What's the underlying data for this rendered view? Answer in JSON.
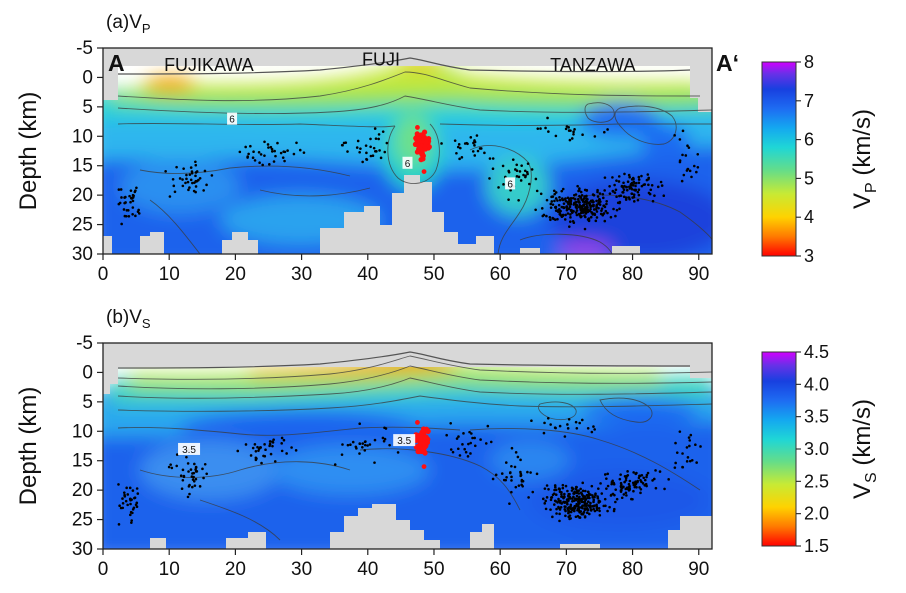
{
  "chart_data": [
    {
      "type": "heatmap",
      "panel_label": "(a)V",
      "panel_label_sub": "P",
      "xlim": [
        0,
        92
      ],
      "ylim": [
        -5,
        30
      ],
      "xticks": [
        0,
        10,
        20,
        30,
        40,
        50,
        60,
        70,
        80,
        90
      ],
      "yticks": [
        -5,
        0,
        5,
        10,
        15,
        20,
        25,
        30
      ],
      "ylabel": "Depth (km)",
      "section_start": "A",
      "section_end": "A‘",
      "place_labels": [
        {
          "text": "FUJIKAWA",
          "x": 16,
          "y": -2.3
        },
        {
          "text": "FUJI",
          "x": 42,
          "y": -3.2
        },
        {
          "text": "TANZAWA",
          "x": 74,
          "y": -2.3
        }
      ],
      "contour_labels": [
        {
          "text": "6",
          "x": 19.5,
          "y": 7
        },
        {
          "text": "6",
          "x": 46,
          "y": 14.5
        },
        {
          "text": "6",
          "x": 61.5,
          "y": 18
        }
      ],
      "colorbar": {
        "label": "V",
        "label_sub": "P",
        "unit": " (km/s)",
        "ticks": [
          3,
          4,
          5,
          6,
          7,
          8
        ],
        "range": [
          3,
          8
        ],
        "stops": [
          {
            "v": 3.0,
            "c": "#ff0000"
          },
          {
            "v": 3.5,
            "c": "#ff7a00"
          },
          {
            "v": 4.0,
            "c": "#ffd200"
          },
          {
            "v": 4.6,
            "c": "#c8ea34"
          },
          {
            "v": 5.2,
            "c": "#66dd88"
          },
          {
            "v": 5.8,
            "c": "#1fd6d6"
          },
          {
            "v": 6.3,
            "c": "#14a8f0"
          },
          {
            "v": 6.8,
            "c": "#1e6cf2"
          },
          {
            "v": 7.3,
            "c": "#1840e0"
          },
          {
            "v": 7.7,
            "c": "#6a30e8"
          },
          {
            "v": 8.0,
            "c": "#d200ff"
          }
        ]
      }
    },
    {
      "type": "heatmap",
      "panel_label": "(b)V",
      "panel_label_sub": "S",
      "xlim": [
        0,
        92
      ],
      "ylim": [
        -5,
        30
      ],
      "xticks": [
        0,
        10,
        20,
        30,
        40,
        50,
        60,
        70,
        80,
        90
      ],
      "yticks": [
        -5,
        0,
        5,
        10,
        15,
        20,
        25,
        30
      ],
      "ylabel": "Depth (km)",
      "contour_labels": [
        {
          "text": "3.5",
          "x": 13,
          "y": 13
        },
        {
          "text": "3.5",
          "x": 45.5,
          "y": 11.5
        }
      ],
      "colorbar": {
        "label": "V",
        "label_sub": "S",
        "unit": " (km/s)",
        "ticks": [
          1.5,
          2.0,
          2.5,
          3.0,
          3.5,
          4.0,
          4.5
        ],
        "tick_labels": [
          "1.5",
          "2.0",
          "2.5",
          "3.0",
          "3.5",
          "4.0",
          "4.5"
        ],
        "range": [
          1.5,
          4.5
        ],
        "stops": [
          {
            "v": 1.5,
            "c": "#ff0000"
          },
          {
            "v": 1.8,
            "c": "#ff7a00"
          },
          {
            "v": 2.1,
            "c": "#ffd200"
          },
          {
            "v": 2.45,
            "c": "#c8ea34"
          },
          {
            "v": 2.8,
            "c": "#66dd88"
          },
          {
            "v": 3.15,
            "c": "#1fd6d6"
          },
          {
            "v": 3.45,
            "c": "#14a8f0"
          },
          {
            "v": 3.75,
            "c": "#1e6cf2"
          },
          {
            "v": 4.05,
            "c": "#1840e0"
          },
          {
            "v": 4.3,
            "c": "#6a30e8"
          },
          {
            "v": 4.5,
            "c": "#d200ff"
          }
        ]
      }
    }
  ]
}
